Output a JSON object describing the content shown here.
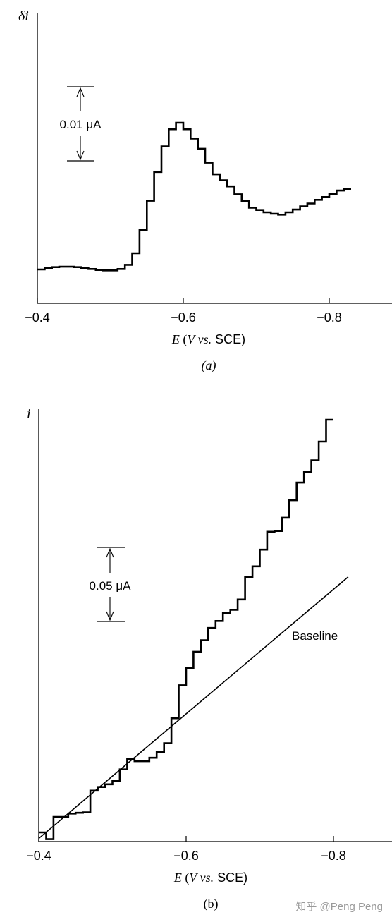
{
  "chart_data": [
    {
      "type": "line",
      "panel_label": "(a)",
      "ylabel": "δi",
      "xlabel_parts": {
        "italic_e": "E",
        "paren_open": " (",
        "italic_v": "V",
        "italic_vs": " vs.",
        "sce": " SCE)"
      },
      "xlim": [
        -0.4,
        -0.85
      ],
      "x_ticks": [
        {
          "value": -0.4,
          "label": "−0.4"
        },
        {
          "value": -0.6,
          "label": "−0.6"
        },
        {
          "value": -0.8,
          "label": "−0.8"
        }
      ],
      "scale_bar_label": "0.01 μA",
      "scale_bar_value_uA": 0.01,
      "series": [
        {
          "style": "staircase",
          "x": [
            -0.4,
            -0.41,
            -0.42,
            -0.43,
            -0.44,
            -0.45,
            -0.46,
            -0.47,
            -0.48,
            -0.49,
            -0.5,
            -0.51,
            -0.52,
            -0.53,
            -0.54,
            -0.55,
            -0.56,
            -0.57,
            -0.58,
            -0.59,
            -0.6,
            -0.61,
            -0.62,
            -0.63,
            -0.64,
            -0.65,
            -0.66,
            -0.67,
            -0.68,
            -0.69,
            -0.7,
            -0.71,
            -0.72,
            -0.73,
            -0.74,
            -0.75,
            -0.76,
            -0.77,
            -0.78,
            -0.79,
            -0.8,
            -0.81,
            -0.82
          ],
          "y": [
            0.001,
            0.0013,
            0.0015,
            0.0016,
            0.0016,
            0.0015,
            0.0013,
            0.0011,
            0.0009,
            0.0008,
            0.0008,
            0.0011,
            0.002,
            0.0045,
            0.0095,
            0.0158,
            0.022,
            0.0275,
            0.0312,
            0.0326,
            0.0312,
            0.0292,
            0.027,
            0.024,
            0.0215,
            0.0202,
            0.0189,
            0.0172,
            0.0157,
            0.0143,
            0.0138,
            0.0133,
            0.013,
            0.0128,
            0.0133,
            0.0139,
            0.0146,
            0.0152,
            0.016,
            0.0166,
            0.0173,
            0.018,
            0.0183
          ]
        }
      ]
    },
    {
      "type": "line",
      "panel_label": "(b)",
      "ylabel": "i",
      "xlabel_parts": {
        "italic_e": "E",
        "paren_open": " (",
        "italic_v": "V",
        "italic_vs": " vs.",
        "sce": " SCE)"
      },
      "xlim": [
        -0.4,
        -0.85
      ],
      "x_ticks": [
        {
          "value": -0.4,
          "label": "−0.4"
        },
        {
          "value": -0.6,
          "label": "−0.6"
        },
        {
          "value": -0.8,
          "label": "−0.8"
        }
      ],
      "scale_bar_label": "0.05 μA",
      "scale_bar_value_uA": 0.05,
      "baseline_label": "Baseline",
      "baseline": {
        "x": [
          -0.4,
          -0.82
        ],
        "y": [
          0.0045,
          0.178
        ]
      },
      "series": [
        {
          "style": "staircase",
          "x": [
            -0.4,
            -0.41,
            -0.42,
            -0.43,
            -0.44,
            -0.45,
            -0.46,
            -0.47,
            -0.48,
            -0.49,
            -0.5,
            -0.51,
            -0.52,
            -0.53,
            -0.54,
            -0.55,
            -0.56,
            -0.57,
            -0.58,
            -0.59,
            -0.6,
            -0.61,
            -0.62,
            -0.63,
            -0.64,
            -0.65,
            -0.66,
            -0.67,
            -0.68,
            -0.69,
            -0.7,
            -0.71,
            -0.72,
            -0.73,
            -0.74,
            -0.75,
            -0.76,
            -0.77,
            -0.78,
            -0.79
          ],
          "y": [
            0.0085,
            0.004,
            0.0188,
            0.0188,
            0.021,
            0.0215,
            0.0218,
            0.0362,
            0.0386,
            0.0404,
            0.0428,
            0.0503,
            0.057,
            0.0557,
            0.0557,
            0.058,
            0.0617,
            0.0677,
            0.0842,
            0.1061,
            0.1174,
            0.1283,
            0.136,
            0.1441,
            0.1487,
            0.1541,
            0.1561,
            0.163,
            0.178,
            0.185,
            0.196,
            0.2079,
            0.2084,
            0.2172,
            0.2288,
            0.2405,
            0.2477,
            0.2553,
            0.2677,
            0.2822
          ]
        }
      ]
    }
  ],
  "footer": {
    "watermark": "知乎 @Peng Peng"
  }
}
